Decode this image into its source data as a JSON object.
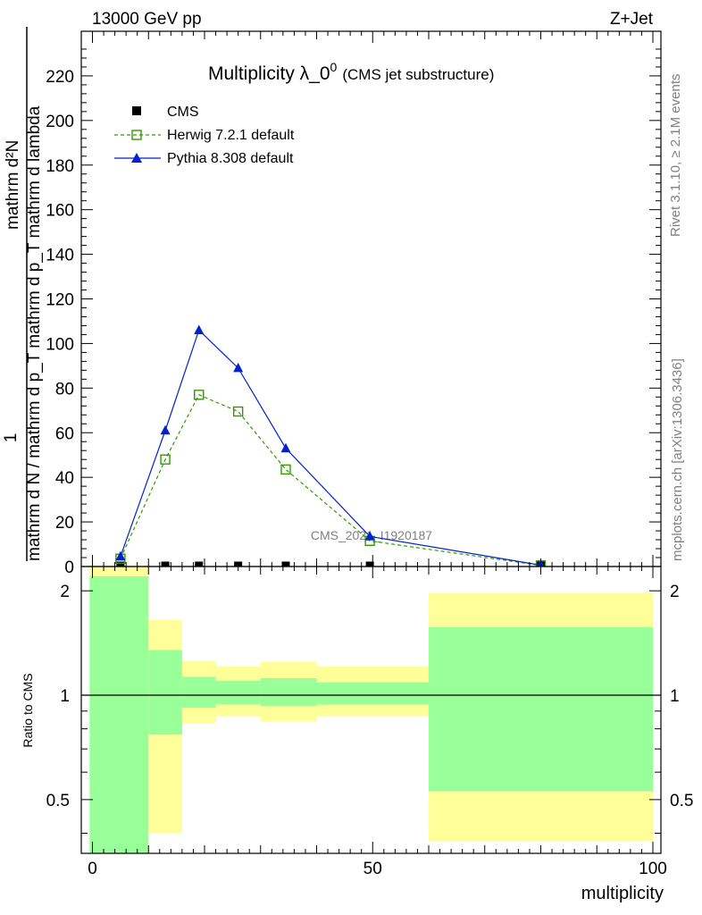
{
  "header": {
    "left": "13000 GeV pp",
    "right": "Z+Jet"
  },
  "side": {
    "rivet": "Rivet 3.1.10, ≥ 2.1M events",
    "mcplots": "mcplots.cern.ch [arXiv:1306.3436]"
  },
  "chart_data": {
    "type": "line",
    "title": "Multiplicity λ_0",
    "title_sup": "0",
    "subtitle": "(CMS jet substructure)",
    "watermark": "CMS_2021_I1920187",
    "ylabel_top": "1",
    "ylabel_main": "mathrm d N / mathrm d p_T mathrm d p_T mathrm d lambda",
    "ylabel_alt": "mathrm d²N",
    "xlabel": "multiplicity",
    "ratio_ylabel": "Ratio to CMS",
    "xlim": [
      -2,
      100
    ],
    "ylim": [
      0,
      240
    ],
    "ratio_ylim": [
      0.35,
      2.35
    ],
    "x_ticks": [
      "0",
      "50",
      "100"
    ],
    "y_ticks": [
      "0",
      "20",
      "40",
      "60",
      "80",
      "100",
      "120",
      "140",
      "160",
      "180",
      "200",
      "220"
    ],
    "ratio_ticks": [
      "0.5",
      "1",
      "2"
    ],
    "legend": [
      "CMS",
      "Herwig 7.2.1 default",
      "Pythia 8.308 default"
    ],
    "series": [
      {
        "name": "CMS",
        "color": "#000000",
        "marker": "square",
        "x": [
          5,
          13,
          19,
          26,
          34.5,
          49.5,
          80
        ],
        "y": [
          0.4,
          0.4,
          0.4,
          0.4,
          0.4,
          0.4,
          0.4
        ]
      },
      {
        "name": "Herwig 7.2.1 default",
        "color": "#339900",
        "marker": "open-square",
        "dash": true,
        "x": [
          5,
          13,
          19,
          26,
          34.5,
          49.5,
          80
        ],
        "y": [
          3.5,
          48,
          77,
          69.5,
          43.5,
          11.5,
          0.5
        ]
      },
      {
        "name": "Pythia 8.308 default",
        "color": "#0022cc",
        "marker": "triangle",
        "x": [
          5,
          13,
          19,
          26,
          34.5,
          49.5,
          80
        ],
        "y": [
          4.5,
          61,
          106,
          89,
          53,
          13.5,
          0.6
        ]
      }
    ],
    "ratio_bands": [
      {
        "x0": -0.5,
        "x1": 10,
        "yellow": [
          0.35,
          2.35
        ],
        "green": [
          0.35,
          2.2
        ]
      },
      {
        "x0": 10,
        "x1": 16,
        "yellow": [
          0.4,
          1.65
        ],
        "green": [
          0.77,
          1.35
        ]
      },
      {
        "x0": 16,
        "x1": 22,
        "yellow": [
          0.83,
          1.26
        ],
        "green": [
          0.92,
          1.13
        ]
      },
      {
        "x0": 22,
        "x1": 30,
        "yellow": [
          0.87,
          1.21
        ],
        "green": [
          0.94,
          1.1
        ]
      },
      {
        "x0": 30,
        "x1": 40,
        "yellow": [
          0.84,
          1.25
        ],
        "green": [
          0.93,
          1.12
        ]
      },
      {
        "x0": 40,
        "x1": 60,
        "yellow": [
          0.87,
          1.21
        ],
        "green": [
          0.94,
          1.09
        ]
      },
      {
        "x0": 60,
        "x1": 100,
        "yellow": [
          0.38,
          1.97
        ],
        "green": [
          0.53,
          1.57
        ]
      }
    ]
  }
}
